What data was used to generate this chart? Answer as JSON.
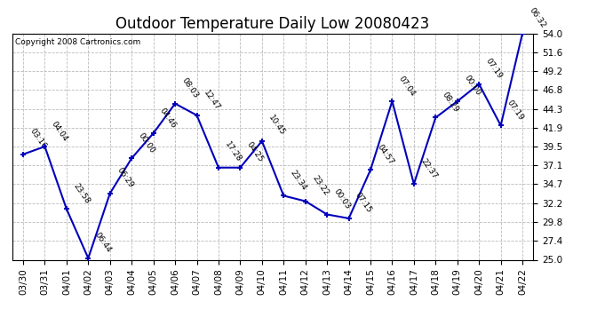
{
  "title": "Outdoor Temperature Daily Low 20080423",
  "copyright": "Copyright 2008 Cartronics.com",
  "x_labels": [
    "03/30",
    "03/31",
    "04/01",
    "04/02",
    "04/03",
    "04/04",
    "04/05",
    "04/06",
    "04/07",
    "04/08",
    "04/09",
    "04/10",
    "04/11",
    "04/12",
    "04/13",
    "04/14",
    "04/15",
    "04/16",
    "04/17",
    "04/18",
    "04/19",
    "04/20",
    "04/21",
    "04/22"
  ],
  "y_values": [
    38.5,
    39.5,
    31.5,
    25.2,
    33.5,
    38.0,
    41.2,
    45.0,
    43.5,
    36.8,
    36.8,
    40.2,
    33.2,
    32.5,
    30.8,
    30.3,
    36.5,
    45.3,
    34.7,
    43.2,
    45.3,
    47.5,
    42.2,
    54.0
  ],
  "point_labels": [
    "03:16",
    "04:04",
    "23:58",
    "06:44",
    "06:29",
    "00:00",
    "04:46",
    "08:03",
    "12:47",
    "17:28",
    "04:25",
    "10:45",
    "23:34",
    "23:22",
    "00:03",
    "07:15",
    "04:57",
    "07:04",
    "22:37",
    "08:29",
    "00:00",
    "07:19",
    "07:19",
    "06:32"
  ],
  "line_color": "#0000BB",
  "marker_color": "#0000BB",
  "bg_color": "#FFFFFF",
  "grid_color": "#BBBBBB",
  "y_min": 25.0,
  "y_max": 54.0,
  "y_ticks": [
    25.0,
    27.4,
    29.8,
    32.2,
    34.7,
    37.1,
    39.5,
    41.9,
    44.3,
    46.8,
    49.2,
    51.6,
    54.0
  ],
  "title_fontsize": 12,
  "label_fontsize": 6.5,
  "tick_fontsize": 7.5,
  "copyright_fontsize": 6.5
}
